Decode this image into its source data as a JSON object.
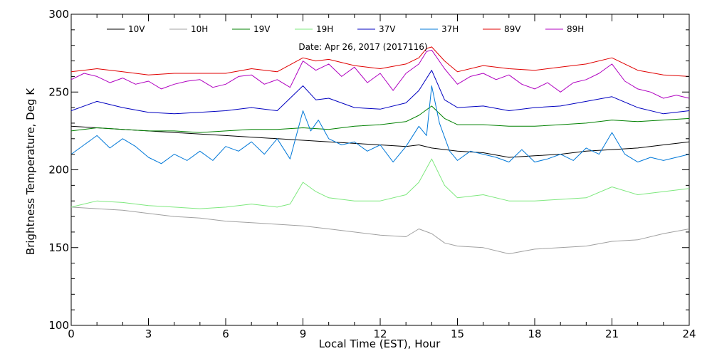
{
  "chart_data": {
    "type": "line",
    "subtitle": "Date: Apr 26, 2017 (2017116)",
    "xlabel": "Local Time (EST), Hour",
    "ylabel": "Brightness Temperature, Deg K",
    "xlim": [
      0,
      24
    ],
    "ylim": [
      100,
      300
    ],
    "xticks": [
      0,
      3,
      6,
      9,
      12,
      15,
      18,
      21,
      24
    ],
    "xtick_labels": [
      "0",
      "3",
      "6",
      "9",
      "12",
      "15",
      "18",
      "21",
      "24"
    ],
    "yticks": [
      100,
      150,
      200,
      250,
      300
    ],
    "ytick_labels": [
      "100",
      "150",
      "200",
      "250",
      "300"
    ],
    "grid": false,
    "legend_position": "top",
    "series": [
      {
        "name": "10V",
        "color": "#000000",
        "x": [
          0,
          1,
          2,
          3,
          4,
          5,
          6,
          7,
          8,
          9,
          10,
          11,
          12,
          13,
          13.5,
          14,
          15,
          16,
          17,
          18,
          19,
          20,
          21,
          22,
          23,
          24
        ],
        "y": [
          228,
          227,
          226,
          225,
          224,
          223,
          222,
          221,
          220,
          219,
          218,
          217,
          216,
          215,
          216,
          214,
          212,
          211,
          208,
          209,
          210,
          212,
          213,
          214,
          216,
          218
        ]
      },
      {
        "name": "10H",
        "color": "#a0a0a0",
        "x": [
          0,
          1,
          2,
          3,
          4,
          5,
          6,
          7,
          8,
          9,
          10,
          11,
          12,
          13,
          13.5,
          14,
          14.5,
          15,
          16,
          17,
          18,
          19,
          20,
          21,
          22,
          23,
          24
        ],
        "y": [
          176,
          175,
          174,
          172,
          170,
          169,
          167,
          166,
          165,
          164,
          162,
          160,
          158,
          157,
          162,
          159,
          153,
          151,
          150,
          146,
          149,
          150,
          151,
          154,
          155,
          159,
          162
        ]
      },
      {
        "name": "19V",
        "color": "#008000",
        "x": [
          0,
          1,
          2,
          3,
          4,
          5,
          6,
          7,
          8,
          9,
          10,
          11,
          12,
          13,
          13.5,
          14,
          14.5,
          15,
          16,
          17,
          18,
          19,
          20,
          21,
          22,
          23,
          24
        ],
        "y": [
          225,
          227,
          226,
          225,
          225,
          224,
          225,
          226,
          226,
          227,
          226,
          228,
          229,
          231,
          235,
          241,
          233,
          229,
          229,
          228,
          228,
          229,
          230,
          232,
          231,
          232,
          233
        ]
      },
      {
        "name": "19H",
        "color": "#7ee87e",
        "x": [
          0,
          1,
          2,
          3,
          4,
          5,
          6,
          7,
          8,
          8.5,
          9,
          9.5,
          10,
          11,
          12,
          13,
          13.5,
          14,
          14.5,
          15,
          16,
          17,
          18,
          19,
          20,
          21,
          22,
          23,
          24
        ],
        "y": [
          176,
          180,
          179,
          177,
          176,
          175,
          176,
          178,
          176,
          178,
          192,
          186,
          182,
          180,
          180,
          184,
          192,
          207,
          190,
          182,
          184,
          180,
          180,
          181,
          182,
          189,
          184,
          186,
          188
        ]
      },
      {
        "name": "37V",
        "color": "#0000c0",
        "x": [
          0,
          1,
          2,
          3,
          4,
          5,
          6,
          7,
          8,
          9,
          9.5,
          10,
          11,
          12,
          13,
          13.5,
          14,
          14.5,
          15,
          16,
          17,
          18,
          19,
          20,
          21,
          22,
          23,
          24
        ],
        "y": [
          238,
          244,
          240,
          237,
          236,
          237,
          238,
          240,
          238,
          254,
          245,
          246,
          240,
          239,
          243,
          251,
          264,
          245,
          240,
          241,
          238,
          240,
          241,
          244,
          247,
          240,
          236,
          238
        ]
      },
      {
        "name": "37H",
        "color": "#0078d8",
        "x": [
          0,
          0.5,
          1,
          1.5,
          2,
          2.5,
          3,
          3.5,
          4,
          4.5,
          5,
          5.5,
          6,
          6.5,
          7,
          7.5,
          8,
          8.5,
          9,
          9.3,
          9.6,
          10,
          10.5,
          11,
          11.5,
          12,
          12.5,
          13,
          13.5,
          13.8,
          14,
          14.3,
          14.7,
          15,
          15.5,
          16,
          16.5,
          17,
          17.5,
          18,
          18.5,
          19,
          19.5,
          20,
          20.5,
          21,
          21.5,
          22,
          22.5,
          23,
          23.5,
          24
        ],
        "y": [
          210,
          216,
          222,
          214,
          220,
          215,
          208,
          204,
          210,
          206,
          212,
          206,
          215,
          212,
          218,
          210,
          220,
          207,
          238,
          225,
          232,
          220,
          216,
          218,
          212,
          216,
          205,
          215,
          228,
          222,
          254,
          230,
          212,
          206,
          212,
          210,
          208,
          205,
          213,
          205,
          207,
          210,
          206,
          214,
          210,
          224,
          210,
          205,
          208,
          206,
          208,
          210
        ]
      },
      {
        "name": "89V",
        "color": "#e00000",
        "x": [
          0,
          1,
          2,
          3,
          4,
          5,
          6,
          7,
          8,
          9,
          9.5,
          10,
          11,
          12,
          13,
          13.5,
          13.8,
          14,
          14.5,
          15,
          16,
          17,
          18,
          19,
          20,
          21,
          22,
          23,
          24
        ],
        "y": [
          263,
          265,
          263,
          261,
          262,
          262,
          262,
          265,
          263,
          272,
          270,
          271,
          267,
          265,
          268,
          272,
          278,
          279,
          270,
          263,
          267,
          265,
          264,
          266,
          268,
          272,
          264,
          261,
          260
        ]
      },
      {
        "name": "89H",
        "color": "#b000c0",
        "x": [
          0,
          0.5,
          1,
          1.5,
          2,
          2.5,
          3,
          3.5,
          4,
          4.5,
          5,
          5.5,
          6,
          6.5,
          7,
          7.5,
          8,
          8.5,
          9,
          9.5,
          10,
          10.5,
          11,
          11.5,
          12,
          12.5,
          13,
          13.5,
          13.8,
          14,
          14.5,
          15,
          15.5,
          16,
          16.5,
          17,
          17.5,
          18,
          18.5,
          19,
          19.5,
          20,
          20.5,
          21,
          21.5,
          22,
          22.5,
          23,
          23.5,
          24
        ],
        "y": [
          258,
          262,
          260,
          256,
          259,
          255,
          257,
          252,
          255,
          257,
          258,
          253,
          255,
          260,
          261,
          255,
          258,
          253,
          270,
          264,
          268,
          260,
          266,
          256,
          262,
          251,
          262,
          268,
          276,
          277,
          265,
          255,
          260,
          262,
          258,
          261,
          255,
          252,
          256,
          250,
          256,
          258,
          262,
          268,
          257,
          252,
          250,
          246,
          248,
          246
        ]
      }
    ]
  }
}
